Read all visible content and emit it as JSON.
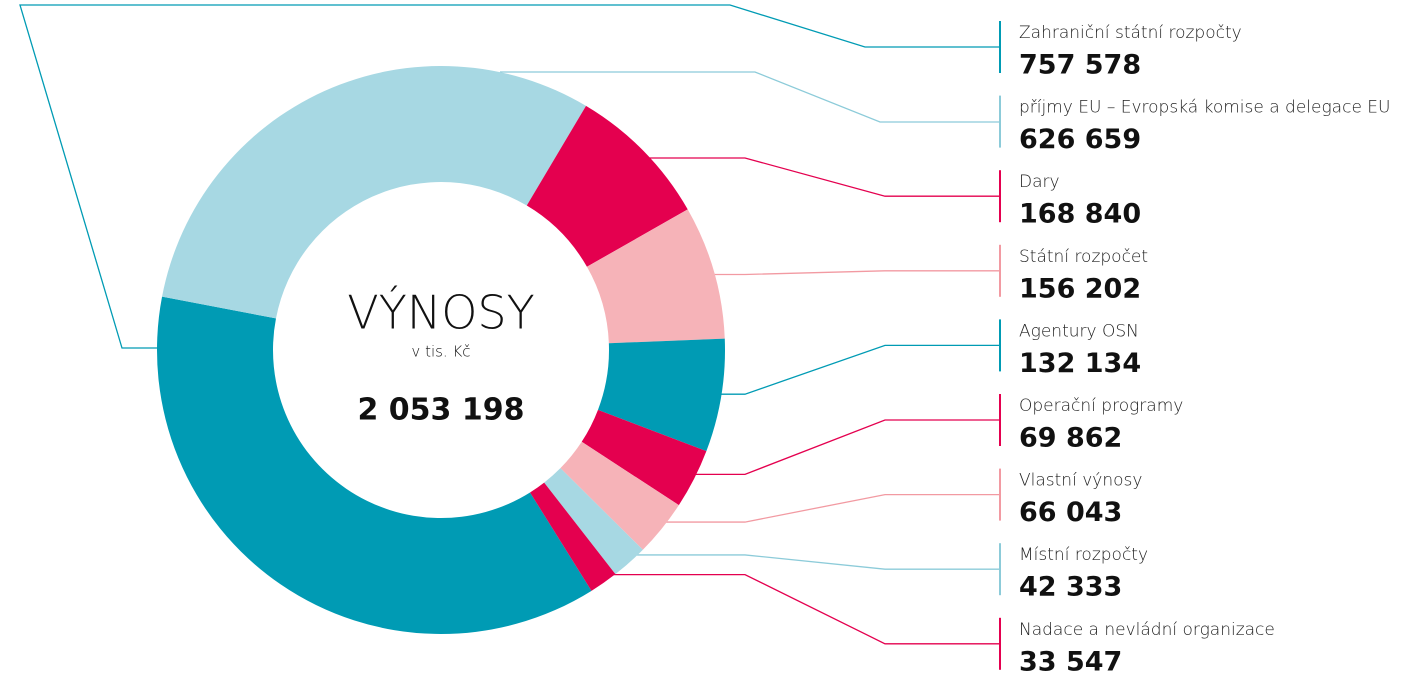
{
  "chart_data": {
    "type": "pie",
    "donut": true,
    "title": "VÝNOSY",
    "subtitle": "v tis. Kč",
    "total": {
      "value": 2053198,
      "label": "2 053 198"
    },
    "categories": [
      "Zahraniční státní rozpočty",
      "příjmy EU – Evropská komise a delegace EU",
      "Dary",
      "Státní rozpočet",
      "Agentury OSN",
      "Operační programy",
      "Vlastní výnosy",
      "Místní rozpočty",
      "Nadace a nevládní organizace"
    ],
    "values": [
      757578,
      626659,
      168840,
      156202,
      132134,
      69862,
      66043,
      42333,
      33547
    ],
    "value_labels": [
      "757 578",
      "626 659",
      "168 840",
      "156 202",
      "132 134",
      "69 862",
      "66 043",
      "42 333",
      "33 547"
    ],
    "colors": [
      "#009bb4",
      "#a7d8e3",
      "#e4004f",
      "#f6b3b8",
      "#009bb4",
      "#e4004f",
      "#f6b3b8",
      "#a7d8e3",
      "#e4004f"
    ]
  }
}
